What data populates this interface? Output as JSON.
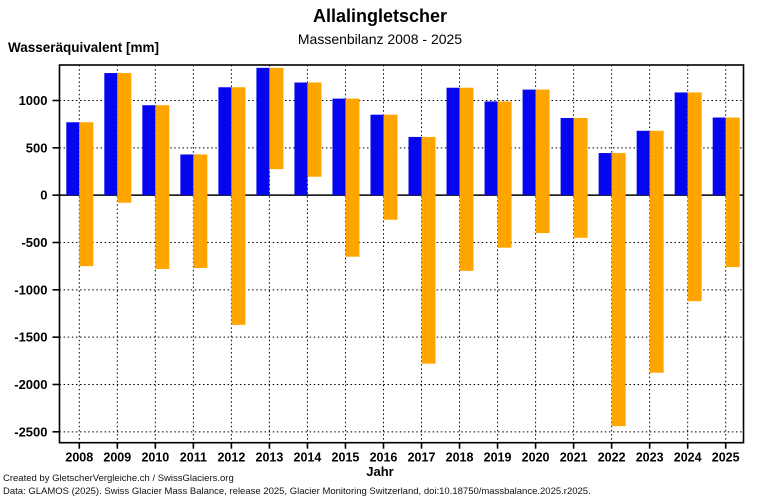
{
  "page": {
    "title": "Allalingletscher",
    "subtitle": "Massenbilanz 2008 - 2025",
    "y_axis_title": "Wasseräquivalent [mm]",
    "x_axis_title": "Jahr",
    "footer_line1": "Created by GletscherVergleiche.ch / SwissGlaciers.org",
    "footer_line2": "Data: GLAMOS (2025). Swiss Glacier Mass Balance, release 2025, Glacier Monitoring Switzerland, doi:10.18750/massbalance.2025.r2025."
  },
  "chart_data": {
    "type": "bar",
    "title": "Allalingletscher",
    "subtitle": "Massenbilanz 2008 - 2025",
    "xlabel": "Jahr",
    "ylabel": "Wasseräquivalent [mm]",
    "categories": [
      "2008",
      "2009",
      "2010",
      "2011",
      "2012",
      "2013",
      "2014",
      "2015",
      "2016",
      "2017",
      "2018",
      "2019",
      "2020",
      "2021",
      "2022",
      "2023",
      "2024",
      "2025"
    ],
    "series": [
      {
        "name": "blue-winter-balance",
        "color": "#0505ee",
        "values": [
          770,
          1290,
          950,
          430,
          1140,
          1345,
          1190,
          1020,
          850,
          615,
          1135,
          990,
          1115,
          815,
          445,
          680,
          1085,
          820
        ]
      },
      {
        "name": "orange-annual-balance",
        "color": "#ffa500",
        "values": [
          -750,
          -80,
          -780,
          -770,
          -1370,
          275,
          195,
          -650,
          -260,
          -1780,
          -800,
          -555,
          -400,
          -450,
          -2440,
          -1875,
          -1120,
          -760
        ],
        "bar_style": "drawn from the blue bar top down to the annual value"
      }
    ],
    "ylim": [
      -2615,
      1375
    ],
    "yticks": [
      1000,
      500,
      0,
      -500,
      -1000,
      -1500,
      -2000,
      -2500
    ],
    "grid": "dotted black, horizontal every 500 and vertical at each year; zero line solid",
    "legend_position": "none"
  }
}
